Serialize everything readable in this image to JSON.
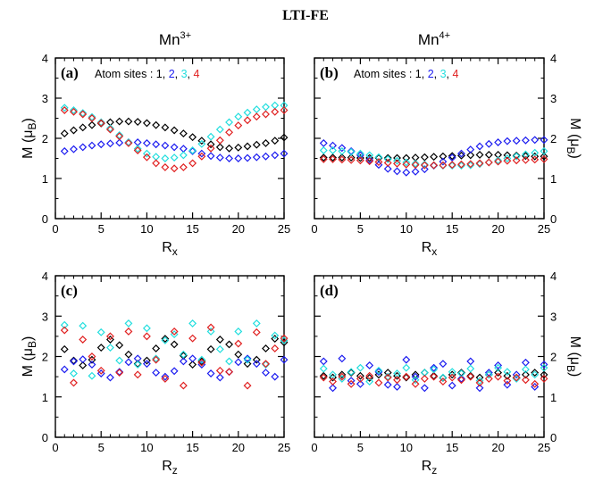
{
  "figure": {
    "title": "LTI-FE",
    "col_titles": [
      {
        "base": "Mn",
        "sup": "3+"
      },
      {
        "base": "Mn",
        "sup": "4+"
      }
    ]
  },
  "colors": {
    "site1": "#000000",
    "site2": "#1c1cf0",
    "site3": "#22dede",
    "site4": "#e02020",
    "axis": "#000000"
  },
  "chart_data": [
    {
      "type": "scatter",
      "panel": "(a)",
      "xlabel": {
        "base": "R",
        "sub": "x"
      },
      "ylabel": {
        "pre": "M (μ",
        "sub": "B",
        "post": ")"
      },
      "xlim": [
        0,
        25
      ],
      "ylim": [
        0,
        4
      ],
      "xticks": [
        0,
        5,
        10,
        15,
        20,
        25
      ],
      "yticks": [
        0,
        1,
        2,
        3,
        4
      ],
      "annotation": {
        "text": "Atom sites : ",
        "parts": [
          "1",
          "2",
          "3",
          "4"
        ]
      },
      "series": [
        {
          "site": 1,
          "x": [
            1,
            2,
            3,
            4,
            5,
            6,
            7,
            8,
            9,
            10,
            11,
            12,
            13,
            14,
            15,
            16,
            17,
            18,
            19,
            20,
            21,
            22,
            23,
            24,
            25
          ],
          "y": [
            2.12,
            2.2,
            2.27,
            2.33,
            2.37,
            2.4,
            2.42,
            2.42,
            2.41,
            2.38,
            2.33,
            2.27,
            2.2,
            2.12,
            2.03,
            1.94,
            1.85,
            1.78,
            1.75,
            1.77,
            1.8,
            1.84,
            1.88,
            1.94,
            2.02
          ]
        },
        {
          "site": 2,
          "x": [
            1,
            2,
            3,
            4,
            5,
            6,
            7,
            8,
            9,
            10,
            11,
            12,
            13,
            14,
            15,
            16,
            17,
            18,
            19,
            20,
            21,
            22,
            23,
            24,
            25
          ],
          "y": [
            1.68,
            1.73,
            1.78,
            1.82,
            1.85,
            1.87,
            1.89,
            1.9,
            1.9,
            1.88,
            1.85,
            1.82,
            1.78,
            1.74,
            1.68,
            1.62,
            1.56,
            1.52,
            1.5,
            1.5,
            1.51,
            1.53,
            1.55,
            1.58,
            1.62
          ]
        },
        {
          "site": 3,
          "x": [
            1,
            2,
            3,
            4,
            5,
            6,
            7,
            8,
            9,
            10,
            11,
            12,
            13,
            14,
            15,
            16,
            17,
            18,
            19,
            20,
            21,
            22,
            23,
            24,
            25
          ],
          "y": [
            2.76,
            2.7,
            2.63,
            2.53,
            2.4,
            2.25,
            2.08,
            1.9,
            1.74,
            1.62,
            1.54,
            1.5,
            1.52,
            1.58,
            1.7,
            1.86,
            2.04,
            2.22,
            2.4,
            2.54,
            2.64,
            2.72,
            2.78,
            2.82,
            2.82
          ]
        },
        {
          "site": 4,
          "x": [
            1,
            2,
            3,
            4,
            5,
            6,
            7,
            8,
            9,
            10,
            11,
            12,
            13,
            14,
            15,
            16,
            17,
            18,
            19,
            20,
            21,
            22,
            23,
            24,
            25
          ],
          "y": [
            2.7,
            2.66,
            2.6,
            2.5,
            2.38,
            2.22,
            2.05,
            1.88,
            1.7,
            1.53,
            1.38,
            1.28,
            1.25,
            1.28,
            1.38,
            1.55,
            1.75,
            1.95,
            2.15,
            2.32,
            2.45,
            2.54,
            2.6,
            2.66,
            2.7
          ]
        }
      ]
    },
    {
      "type": "scatter",
      "panel": "(b)",
      "xlabel": {
        "base": "R",
        "sub": "x"
      },
      "ylabel": {
        "pre": "M (μ",
        "sub": "B",
        "post": ")"
      },
      "xlim": [
        0,
        25
      ],
      "ylim": [
        0,
        4
      ],
      "xticks": [
        0,
        5,
        10,
        15,
        20,
        25
      ],
      "yticks": [
        0,
        1,
        2,
        3,
        4
      ],
      "annotation": {
        "text": "Atom sites : ",
        "parts": [
          "1",
          "2",
          "3",
          "4"
        ]
      },
      "series": [
        {
          "site": 1,
          "x": [
            1,
            2,
            3,
            4,
            5,
            6,
            7,
            8,
            9,
            10,
            11,
            12,
            13,
            14,
            15,
            16,
            17,
            18,
            19,
            20,
            21,
            22,
            23,
            24,
            25
          ],
          "y": [
            1.52,
            1.52,
            1.52,
            1.52,
            1.51,
            1.51,
            1.51,
            1.51,
            1.51,
            1.51,
            1.52,
            1.53,
            1.54,
            1.55,
            1.56,
            1.57,
            1.58,
            1.59,
            1.59,
            1.59,
            1.58,
            1.57,
            1.56,
            1.55,
            1.55
          ]
        },
        {
          "site": 2,
          "x": [
            1,
            2,
            3,
            4,
            5,
            6,
            7,
            8,
            9,
            10,
            11,
            12,
            13,
            14,
            15,
            16,
            17,
            18,
            19,
            20,
            21,
            22,
            23,
            24,
            25
          ],
          "y": [
            1.88,
            1.82,
            1.76,
            1.68,
            1.58,
            1.46,
            1.34,
            1.24,
            1.18,
            1.15,
            1.17,
            1.23,
            1.32,
            1.42,
            1.52,
            1.62,
            1.72,
            1.8,
            1.86,
            1.9,
            1.93,
            1.94,
            1.95,
            1.96,
            1.96
          ]
        },
        {
          "site": 3,
          "x": [
            1,
            2,
            3,
            4,
            5,
            6,
            7,
            8,
            9,
            10,
            11,
            12,
            13,
            14,
            15,
            16,
            17,
            18,
            19,
            20,
            21,
            22,
            23,
            24,
            25
          ],
          "y": [
            1.7,
            1.7,
            1.68,
            1.66,
            1.62,
            1.58,
            1.53,
            1.48,
            1.44,
            1.4,
            1.37,
            1.35,
            1.33,
            1.32,
            1.32,
            1.32,
            1.33,
            1.36,
            1.4,
            1.45,
            1.5,
            1.55,
            1.6,
            1.64,
            1.68
          ]
        },
        {
          "site": 4,
          "x": [
            1,
            2,
            3,
            4,
            5,
            6,
            7,
            8,
            9,
            10,
            11,
            12,
            13,
            14,
            15,
            16,
            17,
            18,
            19,
            20,
            21,
            22,
            23,
            24,
            25
          ],
          "y": [
            1.48,
            1.48,
            1.47,
            1.46,
            1.45,
            1.43,
            1.41,
            1.39,
            1.37,
            1.35,
            1.34,
            1.33,
            1.33,
            1.33,
            1.34,
            1.35,
            1.36,
            1.38,
            1.4,
            1.42,
            1.44,
            1.45,
            1.46,
            1.47,
            1.48
          ]
        }
      ]
    },
    {
      "type": "scatter",
      "panel": "(c)",
      "xlabel": {
        "base": "R",
        "sub": "z"
      },
      "ylabel": {
        "pre": "M (μ",
        "sub": "B",
        "post": ")"
      },
      "xlim": [
        0,
        25
      ],
      "ylim": [
        0,
        4
      ],
      "xticks": [
        0,
        5,
        10,
        15,
        20,
        25
      ],
      "yticks": [
        0,
        1,
        2,
        3,
        4
      ],
      "series": [
        {
          "site": 1,
          "x": [
            1,
            2,
            3,
            4,
            5,
            6,
            7,
            8,
            9,
            10,
            11,
            12,
            13,
            14,
            15,
            16,
            17,
            18,
            19,
            20,
            21,
            22,
            23,
            24,
            25
          ],
          "y": [
            2.18,
            1.9,
            1.78,
            1.92,
            2.22,
            2.42,
            2.28,
            2.05,
            1.82,
            1.9,
            2.2,
            2.44,
            2.3,
            2.02,
            1.8,
            1.88,
            2.18,
            2.42,
            2.3,
            2.05,
            1.82,
            1.92,
            2.2,
            2.44,
            2.35
          ]
        },
        {
          "site": 2,
          "x": [
            1,
            2,
            3,
            4,
            5,
            6,
            7,
            8,
            9,
            10,
            11,
            12,
            13,
            14,
            15,
            16,
            17,
            18,
            19,
            20,
            21,
            22,
            23,
            24,
            25
          ],
          "y": [
            1.68,
            1.88,
            1.93,
            1.8,
            1.58,
            1.48,
            1.62,
            1.86,
            1.95,
            1.82,
            1.6,
            1.5,
            1.64,
            1.88,
            1.95,
            1.8,
            1.58,
            1.48,
            1.62,
            1.86,
            1.95,
            1.82,
            1.6,
            1.5,
            1.92
          ]
        },
        {
          "site": 3,
          "x": [
            1,
            2,
            3,
            4,
            5,
            6,
            7,
            8,
            9,
            10,
            11,
            12,
            13,
            14,
            15,
            16,
            17,
            18,
            19,
            20,
            21,
            22,
            23,
            24,
            25
          ],
          "y": [
            2.78,
            1.58,
            2.76,
            1.52,
            2.6,
            2.22,
            1.9,
            2.82,
            1.8,
            2.7,
            1.95,
            2.4,
            2.55,
            2.05,
            2.82,
            1.92,
            2.62,
            2.18,
            1.88,
            2.62,
            1.92,
            2.82,
            1.8,
            2.52,
            2.4
          ]
        },
        {
          "site": 4,
          "x": [
            1,
            2,
            3,
            4,
            5,
            6,
            7,
            8,
            9,
            10,
            11,
            12,
            13,
            14,
            15,
            16,
            17,
            18,
            19,
            20,
            21,
            22,
            23,
            24,
            25
          ],
          "y": [
            2.65,
            1.35,
            2.42,
            2.0,
            1.65,
            2.5,
            1.6,
            2.62,
            1.55,
            2.5,
            1.92,
            1.45,
            2.62,
            1.28,
            2.45,
            1.85,
            2.72,
            1.65,
            1.62,
            2.32,
            1.28,
            2.6,
            1.82,
            2.2,
            2.45
          ]
        }
      ]
    },
    {
      "type": "scatter",
      "panel": "(d)",
      "xlabel": {
        "base": "R",
        "sub": "z"
      },
      "ylabel": {
        "pre": "M (μ",
        "sub": "B",
        "post": ")"
      },
      "xlim": [
        0,
        25
      ],
      "ylim": [
        0,
        4
      ],
      "xticks": [
        0,
        5,
        10,
        15,
        20,
        25
      ],
      "yticks": [
        0,
        1,
        2,
        3,
        4
      ],
      "series": [
        {
          "site": 1,
          "x": [
            1,
            2,
            3,
            4,
            5,
            6,
            7,
            8,
            9,
            10,
            11,
            12,
            13,
            14,
            15,
            16,
            17,
            18,
            19,
            20,
            21,
            22,
            23,
            24,
            25
          ],
          "y": [
            1.52,
            1.48,
            1.55,
            1.6,
            1.52,
            1.47,
            1.55,
            1.6,
            1.52,
            1.48,
            1.55,
            1.6,
            1.52,
            1.47,
            1.55,
            1.6,
            1.52,
            1.48,
            1.55,
            1.6,
            1.52,
            1.47,
            1.55,
            1.6,
            1.55
          ]
        },
        {
          "site": 2,
          "x": [
            1,
            2,
            3,
            4,
            5,
            6,
            7,
            8,
            9,
            10,
            11,
            12,
            13,
            14,
            15,
            16,
            17,
            18,
            19,
            20,
            21,
            22,
            23,
            24,
            25
          ],
          "y": [
            1.88,
            1.22,
            1.95,
            1.4,
            1.32,
            1.78,
            1.62,
            1.3,
            1.25,
            1.92,
            1.5,
            1.22,
            1.72,
            1.82,
            1.28,
            1.45,
            1.88,
            1.22,
            1.6,
            1.78,
            1.3,
            1.55,
            1.85,
            1.25,
            1.8
          ]
        },
        {
          "site": 3,
          "x": [
            1,
            2,
            3,
            4,
            5,
            6,
            7,
            8,
            9,
            10,
            11,
            12,
            13,
            14,
            15,
            16,
            17,
            18,
            19,
            20,
            21,
            22,
            23,
            24,
            25
          ],
          "y": [
            1.7,
            1.55,
            1.45,
            1.62,
            1.72,
            1.38,
            1.65,
            1.5,
            1.58,
            1.72,
            1.42,
            1.6,
            1.68,
            1.48,
            1.62,
            1.58,
            1.7,
            1.4,
            1.55,
            1.72,
            1.62,
            1.45,
            1.68,
            1.55,
            1.72
          ]
        },
        {
          "site": 4,
          "x": [
            1,
            2,
            3,
            4,
            5,
            6,
            7,
            8,
            9,
            10,
            11,
            12,
            13,
            14,
            15,
            16,
            17,
            18,
            19,
            20,
            21,
            22,
            23,
            24,
            25
          ],
          "y": [
            1.48,
            1.38,
            1.5,
            1.32,
            1.45,
            1.52,
            1.35,
            1.48,
            1.42,
            1.5,
            1.32,
            1.45,
            1.5,
            1.38,
            1.48,
            1.42,
            1.5,
            1.35,
            1.45,
            1.5,
            1.4,
            1.48,
            1.42,
            1.32,
            1.45
          ]
        }
      ]
    }
  ]
}
